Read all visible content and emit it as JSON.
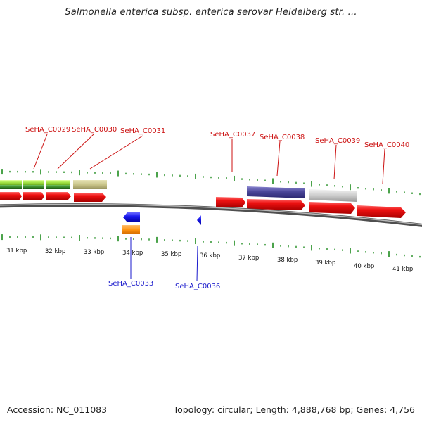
{
  "title": "Salmonella enterica subsp. enterica serovar Heidelberg str. ...",
  "footer": {
    "accession": "Accession: NC_011083",
    "summary": "Topology: circular; Length: 4,888,768 bp; Genes: 4,756"
  },
  "colors": {
    "cds_forward": "#ee1111",
    "cds_reverse": "#1a1aee",
    "label_top": "#cc1111",
    "label_bottom": "#1a1acc",
    "tick": "#1e8c1e",
    "backbone": "#888888",
    "gene_light_green": "#a8e84a",
    "gene_dark_green": "#3a8a2a",
    "gene_khaki": "#c9c489",
    "gene_indigo": "#4a4699",
    "gene_grey": "#cccccc",
    "gene_orange": "#ff9411"
  },
  "scale": {
    "kbp_labels": [
      "31 kbp",
      "32 kbp",
      "33 kbp",
      "34 kbp",
      "35 kbp",
      "36 kbp",
      "37 kbp",
      "38 kbp",
      "39 kbp",
      "40 kbp",
      "41 kbp"
    ]
  },
  "labels_top": [
    "SeHA_C0029",
    "SeHA_C0030",
    "SeHA_C0031",
    "SeHA_C0037",
    "SeHA_C0038",
    "SeHA_C0039",
    "SeHA_C0040"
  ],
  "labels_bottom": [
    "SeHA_C0033",
    "SeHA_C0036"
  ]
}
